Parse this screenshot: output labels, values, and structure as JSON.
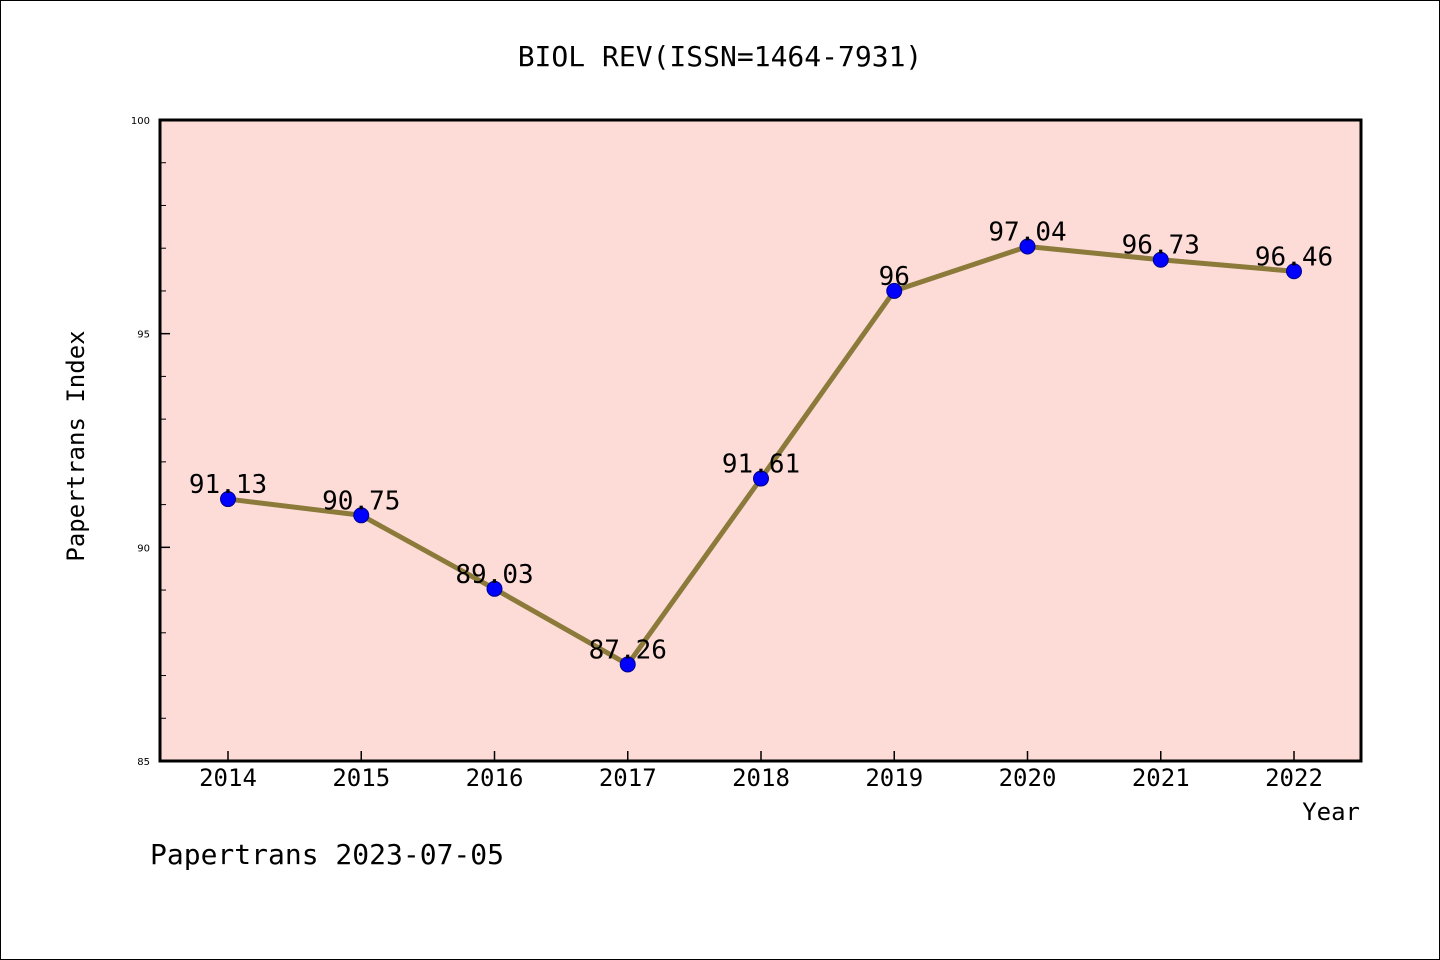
{
  "chart_data": {
    "type": "line",
    "title": "BIOL REV(ISSN=1464-7931)",
    "xlabel": "Year",
    "ylabel": "Papertrans Index",
    "x": [
      "2014",
      "2015",
      "2016",
      "2017",
      "2018",
      "2019",
      "2020",
      "2021",
      "2022"
    ],
    "values": [
      91.13,
      90.75,
      89.03,
      87.26,
      91.61,
      96,
      97.04,
      96.73,
      96.46
    ],
    "data_labels": [
      "91.13",
      "90.75",
      "89.03",
      "87.26",
      "91.61",
      "96",
      "97.04",
      "96.73",
      "96.46"
    ],
    "ylim": [
      85,
      100
    ],
    "y_ticks": [
      "85",
      "90",
      "95",
      "100"
    ],
    "grid": false,
    "legend": "none",
    "colors": {
      "plot_background": "#fddcd8",
      "line": "#8b7a3a",
      "marker": "#0000ff"
    }
  },
  "footer": {
    "text": "Papertrans 2023-07-05"
  }
}
